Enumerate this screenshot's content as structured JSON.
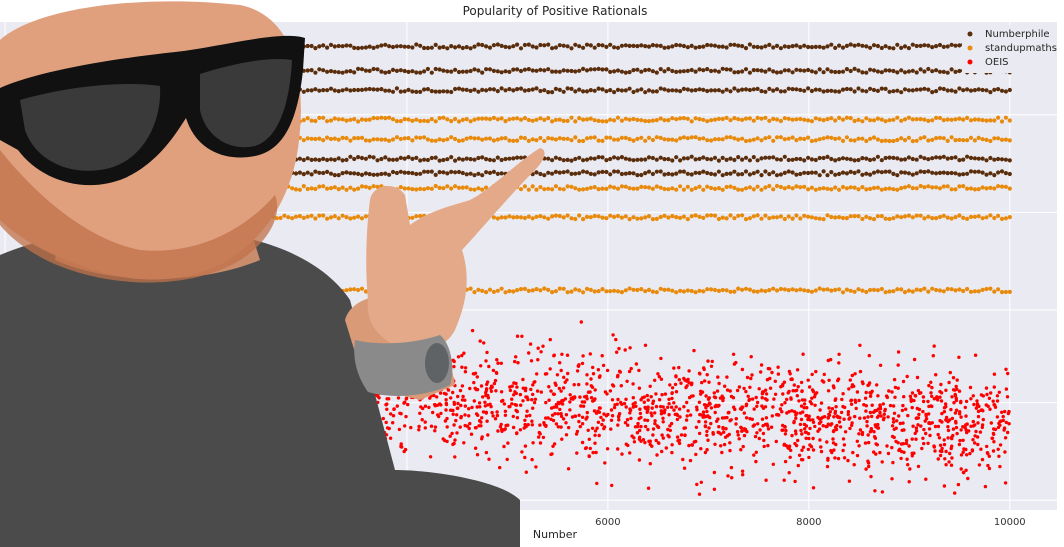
{
  "chart_data": {
    "type": "scatter",
    "title": "Popularity of Positive Rationals",
    "xlabel": "Number",
    "ylabel": "",
    "xlim": [
      -50,
      10470
    ],
    "x_ticks": [
      6000,
      8000,
      10000
    ],
    "x_tick_labels": [
      "6000",
      "8000",
      "10000"
    ],
    "grid": true,
    "legend_position": "top-right",
    "series": [
      {
        "name": "Numberphile",
        "color": "#5a2e0c",
        "pattern": "bands",
        "band_levels": [
          0.95,
          0.9,
          0.86,
          0.72,
          0.69
        ],
        "x_range": [
          1,
          10000
        ]
      },
      {
        "name": "standupmaths",
        "color": "#e88a0c",
        "pattern": "bands",
        "band_levels": [
          0.8,
          0.76,
          0.66,
          0.6,
          0.45
        ],
        "x_range": [
          1,
          10000
        ]
      },
      {
        "name": "OEIS",
        "color": "#ff0000",
        "pattern": "scatter-cloud",
        "x_range": [
          1,
          10000
        ]
      }
    ]
  },
  "photo": {
    "name": "man-with-sunglasses-pointing"
  }
}
